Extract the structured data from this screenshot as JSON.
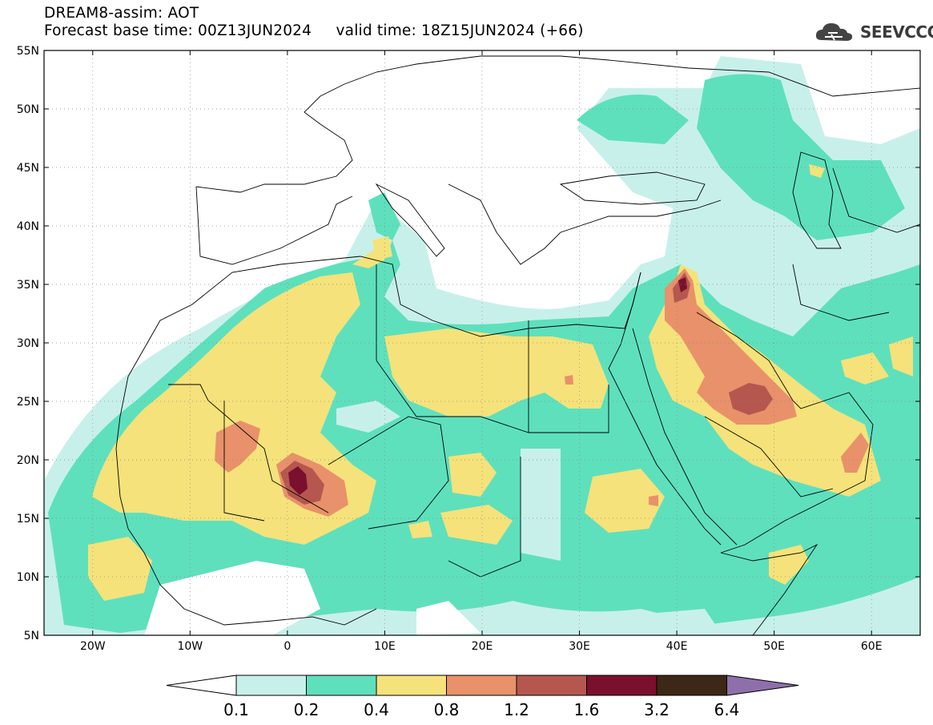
{
  "title": {
    "line1": "DREAM8-assim: AOT",
    "line2_base": "Forecast base time: 00Z13JUN2024",
    "line2_valid": "valid time: 18Z15JUN2024 (+66)"
  },
  "logo": {
    "text": "SEEVCCC",
    "icon": "cloud-icon"
  },
  "axes": {
    "lat_labels": [
      "55N",
      "50N",
      "45N",
      "40N",
      "35N",
      "30N",
      "25N",
      "20N",
      "15N",
      "10N",
      "5N"
    ],
    "lon_labels": [
      "20W",
      "10W",
      "0",
      "10E",
      "20E",
      "30E",
      "40E",
      "50E",
      "60E"
    ]
  },
  "colorbar": {
    "labels": [
      "0.1",
      "0.2",
      "0.4",
      "0.8",
      "1.2",
      "1.6",
      "3.2",
      "6.4"
    ],
    "colors": [
      "#ffffff",
      "#c8f0ea",
      "#5ee0bd",
      "#f5e27a",
      "#e8916a",
      "#b5574e",
      "#7a0f2e",
      "#3d2716",
      "#8f6fab"
    ]
  },
  "map": {
    "lon_range": [
      -25,
      65
    ],
    "lat_range": [
      5,
      55
    ]
  }
}
